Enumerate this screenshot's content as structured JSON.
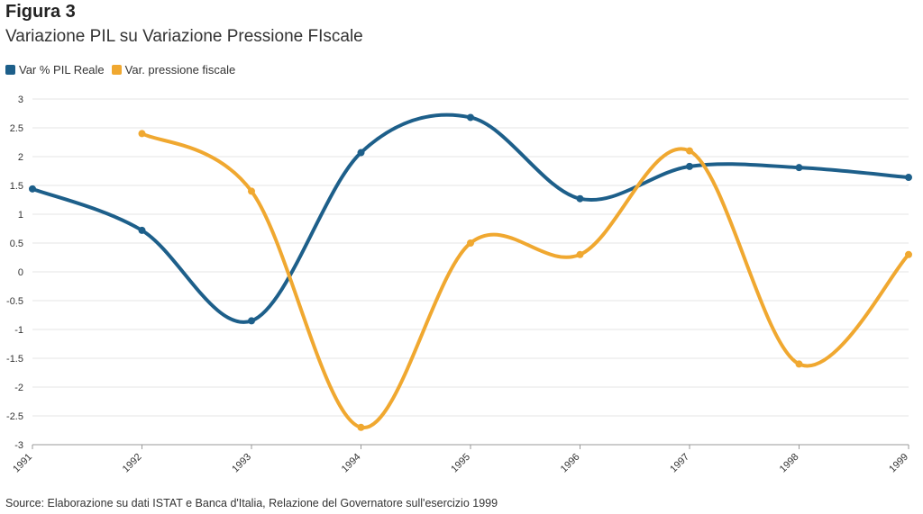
{
  "header": {
    "title": "Figura 3",
    "subtitle": "Variazione PIL su Variazione Pressione FIscale"
  },
  "source": "Source: Elaborazione su dati ISTAT e Banca d'Italia, Relazione del Governatore sull'esercizio 1999",
  "chart_data": {
    "type": "line",
    "x": [
      "1991",
      "1992",
      "1993",
      "1994",
      "1995",
      "1996",
      "1997",
      "1998",
      "1999"
    ],
    "yticks": [
      "3",
      "2.5",
      "2",
      "1.5",
      "1",
      "0.5",
      "0",
      "-0.5",
      "-1",
      "-1.5",
      "-2",
      "-2.5",
      "-3"
    ],
    "ylim": [
      -3,
      3
    ],
    "grid": true,
    "legend": "top-left",
    "series": [
      {
        "name": "Var % PIL Reale",
        "color": "#1d5f8a",
        "values": [
          1.44,
          0.72,
          -0.85,
          2.07,
          2.68,
          1.27,
          1.83,
          1.81,
          1.64
        ]
      },
      {
        "name": "Var. pressione fiscale",
        "color": "#f0a830",
        "values": [
          null,
          2.4,
          1.4,
          -2.7,
          0.5,
          0.3,
          2.1,
          -1.6,
          0.3
        ]
      }
    ]
  }
}
